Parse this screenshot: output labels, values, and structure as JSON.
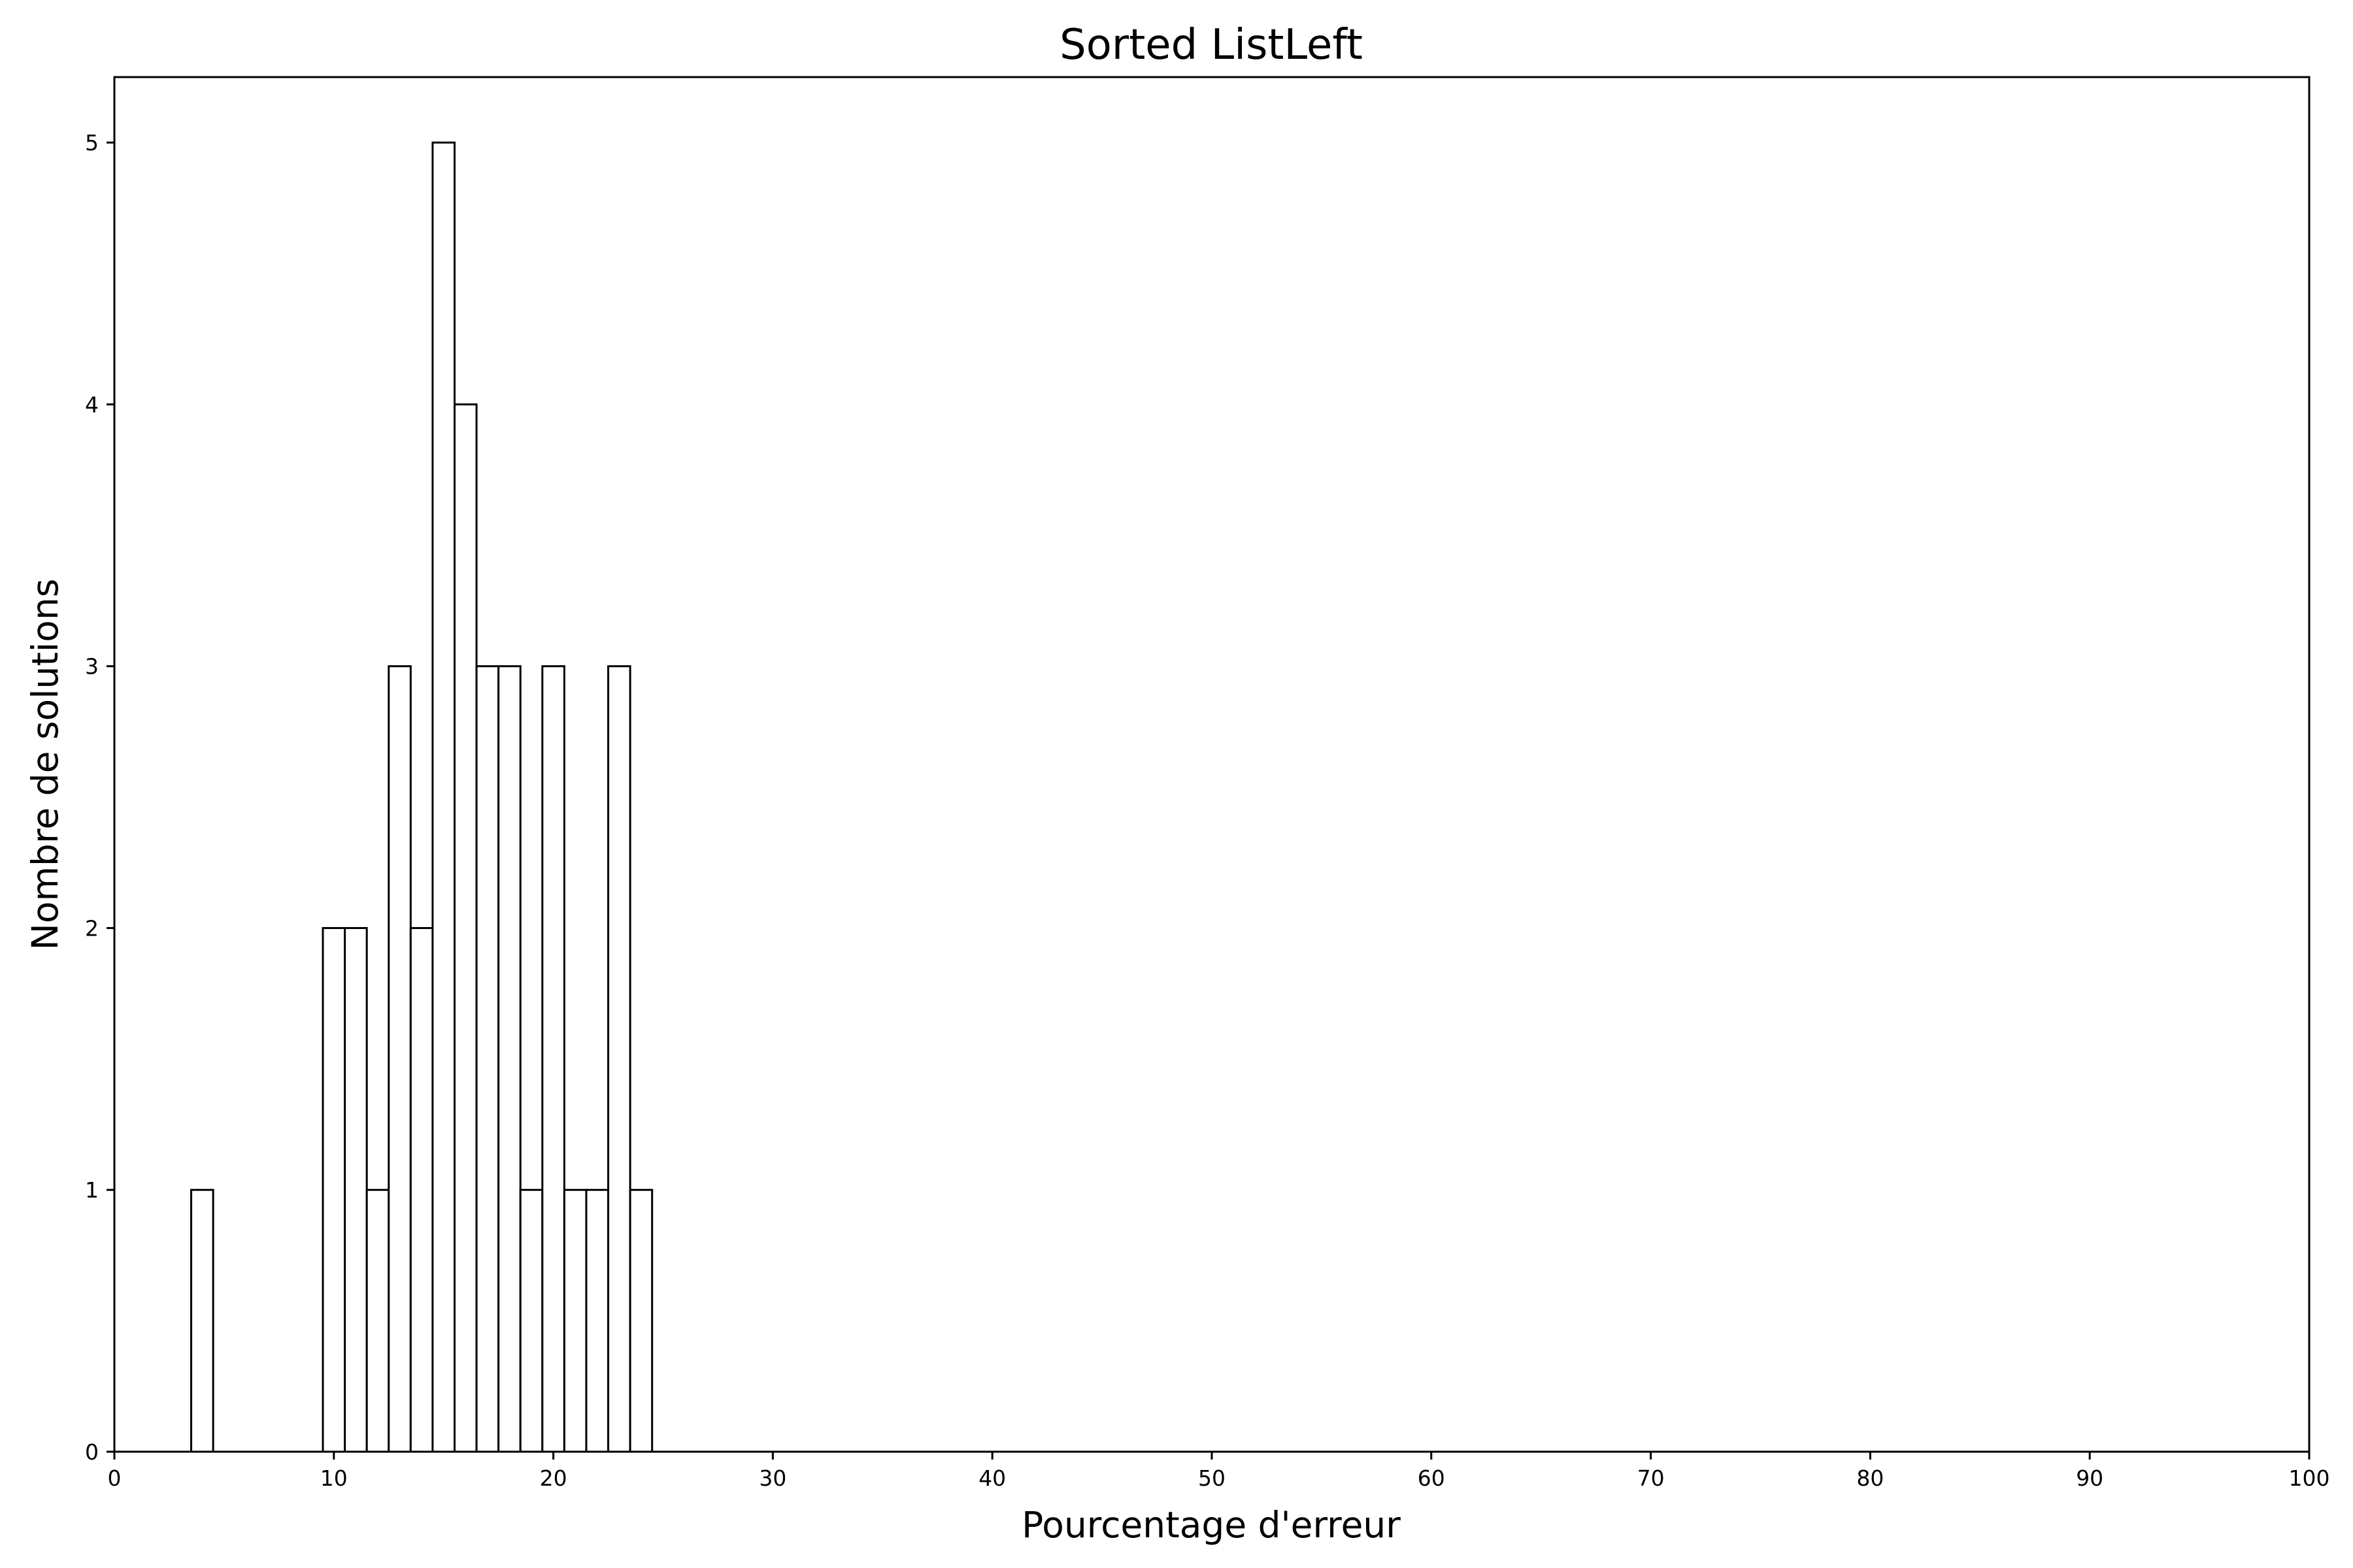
{
  "chart_data": {
    "type": "bar",
    "title": "Sorted ListLeft",
    "xlabel": "Pourcentage d'erreur",
    "ylabel": "Nombre de solutions",
    "xlim": [
      0,
      100
    ],
    "ylim": [
      0,
      5.25
    ],
    "xticks": [
      0,
      10,
      20,
      30,
      40,
      50,
      60,
      70,
      80,
      90,
      100
    ],
    "yticks": [
      0,
      1,
      2,
      3,
      4,
      5
    ],
    "bin_width": 1,
    "bins": [
      {
        "start": 3.5,
        "count": 1
      },
      {
        "start": 9.5,
        "count": 2
      },
      {
        "start": 10.5,
        "count": 2
      },
      {
        "start": 11.5,
        "count": 1
      },
      {
        "start": 12.5,
        "count": 3
      },
      {
        "start": 13.5,
        "count": 2
      },
      {
        "start": 14.5,
        "count": 5
      },
      {
        "start": 15.5,
        "count": 4
      },
      {
        "start": 16.5,
        "count": 3
      },
      {
        "start": 17.5,
        "count": 3
      },
      {
        "start": 18.5,
        "count": 1
      },
      {
        "start": 19.5,
        "count": 3
      },
      {
        "start": 20.5,
        "count": 1
      },
      {
        "start": 21.5,
        "count": 1
      },
      {
        "start": 22.5,
        "count": 3
      },
      {
        "start": 23.5,
        "count": 1
      }
    ],
    "bar_fill": "#ffffff",
    "bar_edge": "#000000",
    "grid": false,
    "legend": "none"
  }
}
